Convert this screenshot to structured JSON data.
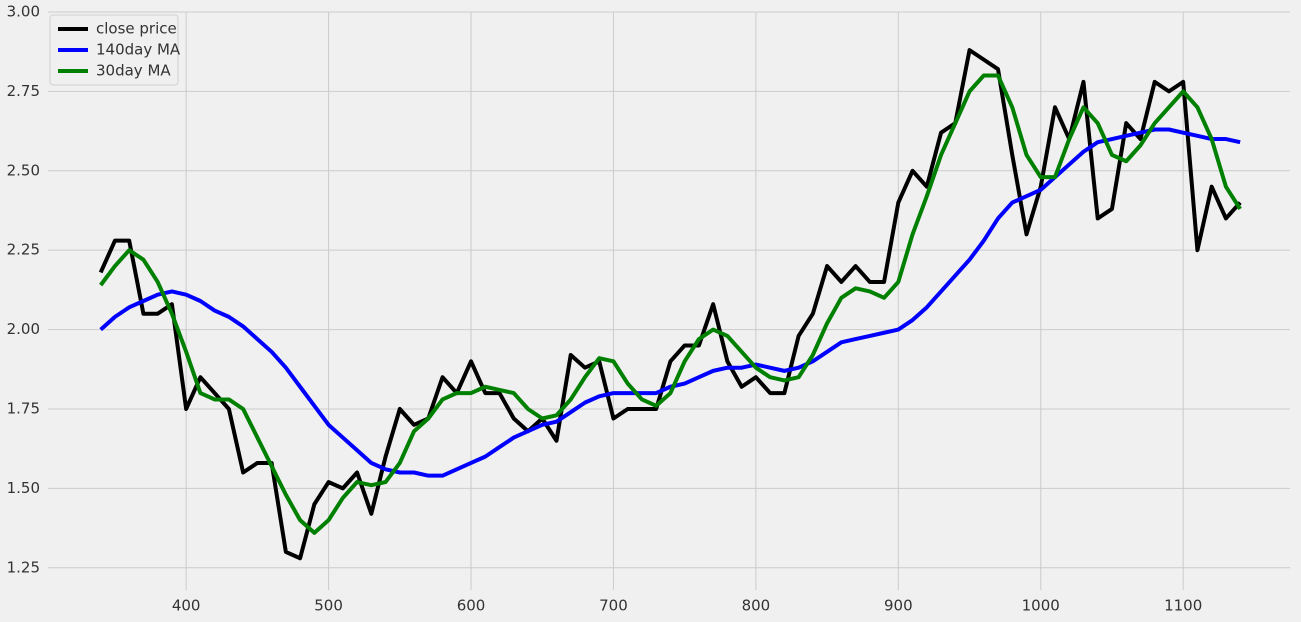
{
  "chart_data": {
    "type": "line",
    "x": [
      340,
      350,
      360,
      370,
      380,
      390,
      400,
      410,
      420,
      430,
      440,
      450,
      460,
      470,
      480,
      490,
      500,
      510,
      520,
      530,
      540,
      550,
      560,
      570,
      580,
      590,
      600,
      610,
      620,
      630,
      640,
      650,
      660,
      670,
      680,
      690,
      700,
      710,
      720,
      730,
      740,
      750,
      760,
      770,
      780,
      790,
      800,
      810,
      820,
      830,
      840,
      850,
      860,
      870,
      880,
      890,
      900,
      910,
      920,
      930,
      940,
      950,
      960,
      970,
      980,
      990,
      1000,
      1010,
      1020,
      1030,
      1040,
      1050,
      1060,
      1070,
      1080,
      1090,
      1100,
      1110,
      1120,
      1130,
      1140
    ],
    "series": [
      {
        "name": "close price",
        "color": "#000000",
        "values": [
          2.18,
          2.28,
          2.28,
          2.05,
          2.05,
          2.08,
          1.75,
          1.85,
          1.8,
          1.75,
          1.55,
          1.58,
          1.58,
          1.3,
          1.28,
          1.45,
          1.52,
          1.5,
          1.55,
          1.42,
          1.6,
          1.75,
          1.7,
          1.72,
          1.85,
          1.8,
          1.9,
          1.8,
          1.8,
          1.72,
          1.68,
          1.72,
          1.65,
          1.92,
          1.88,
          1.9,
          1.72,
          1.75,
          1.75,
          1.75,
          1.9,
          1.95,
          1.95,
          2.08,
          1.9,
          1.82,
          1.85,
          1.8,
          1.8,
          1.98,
          2.05,
          2.2,
          2.15,
          2.2,
          2.15,
          2.15,
          2.4,
          2.5,
          2.45,
          2.62,
          2.65,
          2.88,
          2.85,
          2.82,
          2.55,
          2.3,
          2.45,
          2.7,
          2.6,
          2.78,
          2.35,
          2.38,
          2.65,
          2.6,
          2.78,
          2.75,
          2.78,
          2.25,
          2.45,
          2.35,
          2.4
        ]
      },
      {
        "name": "140day MA",
        "color": "#0000ff",
        "values": [
          2.0,
          2.04,
          2.07,
          2.09,
          2.11,
          2.12,
          2.11,
          2.09,
          2.06,
          2.04,
          2.01,
          1.97,
          1.93,
          1.88,
          1.82,
          1.76,
          1.7,
          1.66,
          1.62,
          1.58,
          1.56,
          1.55,
          1.55,
          1.54,
          1.54,
          1.56,
          1.58,
          1.6,
          1.63,
          1.66,
          1.68,
          1.7,
          1.71,
          1.74,
          1.77,
          1.79,
          1.8,
          1.8,
          1.8,
          1.8,
          1.82,
          1.83,
          1.85,
          1.87,
          1.88,
          1.88,
          1.89,
          1.88,
          1.87,
          1.88,
          1.9,
          1.93,
          1.96,
          1.97,
          1.98,
          1.99,
          2.0,
          2.03,
          2.07,
          2.12,
          2.17,
          2.22,
          2.28,
          2.35,
          2.4,
          2.42,
          2.44,
          2.48,
          2.52,
          2.56,
          2.59,
          2.6,
          2.61,
          2.62,
          2.63,
          2.63,
          2.62,
          2.61,
          2.6,
          2.6,
          2.59
        ]
      },
      {
        "name": "30day MA",
        "color": "#008000",
        "values": [
          2.14,
          2.2,
          2.25,
          2.22,
          2.15,
          2.05,
          1.93,
          1.8,
          1.78,
          1.78,
          1.75,
          1.66,
          1.57,
          1.48,
          1.4,
          1.36,
          1.4,
          1.47,
          1.52,
          1.51,
          1.52,
          1.58,
          1.68,
          1.72,
          1.78,
          1.8,
          1.8,
          1.82,
          1.81,
          1.8,
          1.75,
          1.72,
          1.73,
          1.78,
          1.85,
          1.91,
          1.9,
          1.83,
          1.78,
          1.76,
          1.8,
          1.9,
          1.97,
          2.0,
          1.98,
          1.93,
          1.88,
          1.85,
          1.84,
          1.85,
          1.92,
          2.02,
          2.1,
          2.13,
          2.12,
          2.1,
          2.15,
          2.3,
          2.42,
          2.55,
          2.65,
          2.75,
          2.8,
          2.8,
          2.7,
          2.55,
          2.48,
          2.48,
          2.6,
          2.7,
          2.65,
          2.55,
          2.53,
          2.58,
          2.65,
          2.7,
          2.75,
          2.7,
          2.6,
          2.45,
          2.38
        ]
      }
    ],
    "xlim": [
      303,
      1175
    ],
    "ylim": [
      1.18,
      3.0
    ],
    "xticks": [
      400,
      500,
      600,
      700,
      800,
      900,
      1000,
      1100
    ],
    "yticks": [
      1.25,
      {
        "value": 1.5,
        "label": "1.50"
      },
      1.75,
      {
        "value": 2,
        "label": "2.00"
      },
      2.25,
      {
        "value": 2.5,
        "label": "2.50"
      },
      2.75,
      {
        "value": 3,
        "label": "3.00"
      }
    ],
    "grid": true,
    "legend": "upper-left"
  }
}
